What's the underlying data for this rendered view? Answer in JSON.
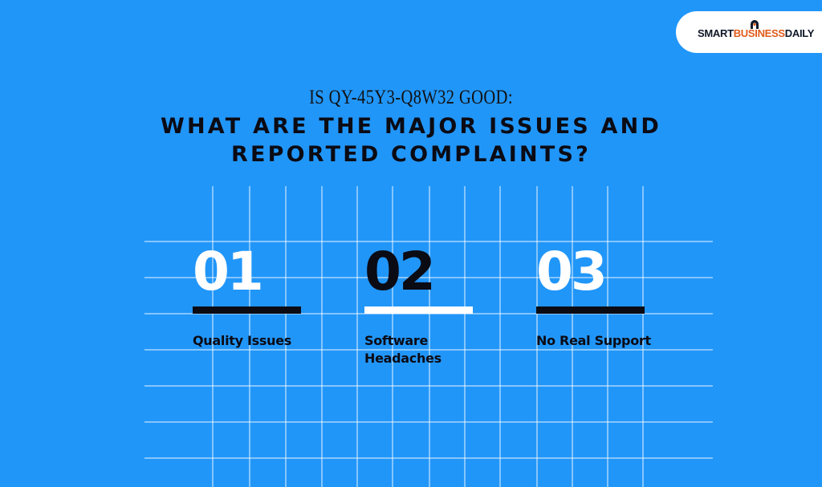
{
  "brand": {
    "part1": "SMART",
    "part2": "BUSINESS",
    "part3": "DAILY",
    "accent_color": "#e05a1a"
  },
  "header": {
    "subtitle": "IS QY-45Y3-Q8W32 GOOD:",
    "title_line1": "WHAT ARE THE MAJOR ISSUES AND",
    "title_line2": "REPORTED COMPLAINTS?"
  },
  "items": [
    {
      "number": "01",
      "label_line1": "Quality Issues",
      "label_line2": "",
      "number_color": "#ffffff",
      "bar_color": "#0b0b14"
    },
    {
      "number": "02",
      "label_line1": "Software",
      "label_line2": "Headaches",
      "number_color": "#0b0b14",
      "bar_color": "#ffffff"
    },
    {
      "number": "03",
      "label_line1": "No Real Support",
      "label_line2": "",
      "number_color": "#ffffff",
      "bar_color": "#0b0b14"
    }
  ],
  "background_color": "#2196f9"
}
